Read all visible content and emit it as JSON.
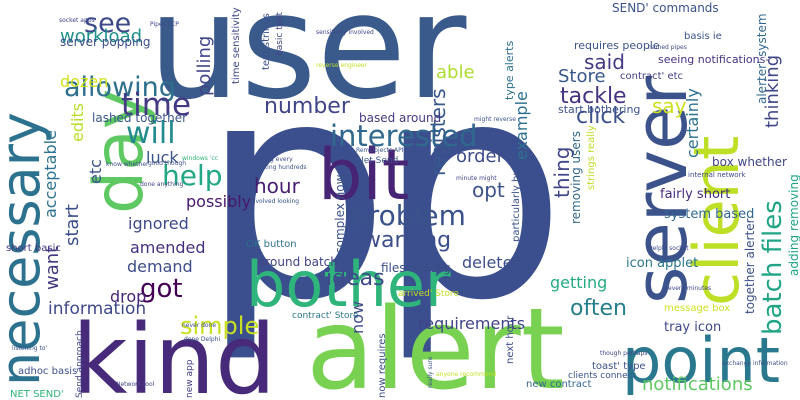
{
  "word_cloud": {
    "words": [
      {
        "id": "user",
        "text": "user",
        "color": "#3b5a8c"
      },
      {
        "id": "pp",
        "text": "pp",
        "color": "#3b4f8e"
      },
      {
        "id": "alert",
        "text": "alert",
        "color": "#79d152"
      },
      {
        "id": "kind",
        "text": "kind",
        "color": "#472a7a"
      },
      {
        "id": "bother",
        "text": "bother",
        "color": "#2fb47c"
      },
      {
        "id": "server",
        "text": "server",
        "color": "#3b528b"
      },
      {
        "id": "client",
        "text": "client",
        "color": "#bddf26"
      },
      {
        "id": "point",
        "text": "point",
        "color": "#2a788e"
      },
      {
        "id": "bit",
        "text": "bit",
        "color": "#482475"
      },
      {
        "id": "day",
        "text": "day",
        "color": "#5ec962"
      },
      {
        "id": "necessary",
        "text": "necessary",
        "color": "#2c728e"
      },
      {
        "id": "interested",
        "text": "interested",
        "color": "#31688e"
      },
      {
        "id": "problem",
        "text": "problem",
        "color": "#3a528b"
      },
      {
        "id": "batch-files",
        "text": "batch files",
        "color": "#20a486"
      },
      {
        "id": "allowing",
        "text": "allowing",
        "color": "#2e6f8e"
      },
      {
        "id": "time",
        "text": "time",
        "color": "#443983"
      },
      {
        "id": "will",
        "text": "will",
        "color": "#238a8d"
      },
      {
        "id": "help",
        "text": "help",
        "color": "#22a884"
      },
      {
        "id": "see",
        "text": "see",
        "color": "#3e4989"
      },
      {
        "id": "simple",
        "text": "simple",
        "color": "#c8e020"
      },
      {
        "id": "warning",
        "text": "warning",
        "color": "#3c4f8a"
      },
      {
        "id": "requirements",
        "text": "requirements",
        "color": "#414487"
      },
      {
        "id": "notifications",
        "text": "notifications",
        "color": "#5ec962"
      },
      {
        "id": "information",
        "text": "information",
        "color": "#3f4889"
      },
      {
        "id": "got",
        "text": "got",
        "color": "#440154"
      },
      {
        "id": "click",
        "text": "click",
        "color": "#3b518b"
      },
      {
        "id": "tackle",
        "text": "tackle",
        "color": "#46327e"
      },
      {
        "id": "hour",
        "text": "hour",
        "color": "#481f70"
      },
      {
        "id": "number",
        "text": "number",
        "color": "#404588"
      },
      {
        "id": "often",
        "text": "often",
        "color": "#277f8e"
      },
      {
        "id": "ideas",
        "text": "ideas",
        "color": "#3e4a89"
      },
      {
        "id": "drop",
        "text": "drop",
        "color": "#482576"
      },
      {
        "id": "able",
        "text": "able",
        "color": "#addc30"
      },
      {
        "id": "workload",
        "text": "workload",
        "color": "#21918c"
      },
      {
        "id": "dozen",
        "text": "dozen",
        "color": "#d2e21b"
      },
      {
        "id": "say",
        "text": "say",
        "color": "#cde11d"
      },
      {
        "id": "said",
        "text": "said",
        "color": "#453781"
      },
      {
        "id": "Store",
        "text": "Store",
        "color": "#38588c"
      },
      {
        "id": "order",
        "text": "order",
        "color": "#3d4d8a"
      },
      {
        "id": "opt",
        "text": "opt",
        "color": "#3b528b"
      },
      {
        "id": "thing",
        "text": "thing",
        "color": "#404688"
      },
      {
        "id": "getting",
        "text": "getting",
        "color": "#25ac82"
      },
      {
        "id": "deleted",
        "text": "deleted",
        "color": "#3d4e8a"
      },
      {
        "id": "amended",
        "text": "amended",
        "color": "#46307e"
      },
      {
        "id": "demand",
        "text": "demand",
        "color": "#3e4c8a"
      },
      {
        "id": "ignored",
        "text": "ignored",
        "color": "#3e4a89"
      },
      {
        "id": "possibly",
        "text": "possibly",
        "color": "#48186a"
      },
      {
        "id": "start",
        "text": "start",
        "color": "#3c508b"
      },
      {
        "id": "want",
        "text": "want",
        "color": "#453882"
      },
      {
        "id": "acceptable",
        "text": "acceptable",
        "color": "#2c728e"
      },
      {
        "id": "edits",
        "text": "edits",
        "color": "#b8de29"
      },
      {
        "id": "etc",
        "text": "etc",
        "color": "#3a538b"
      },
      {
        "id": "luck",
        "text": "luck",
        "color": "#3a548c"
      },
      {
        "id": "polling",
        "text": "polling",
        "color": "#404688"
      },
      {
        "id": "registers",
        "text": "registers",
        "color": "#38588c"
      },
      {
        "id": "example",
        "text": "example",
        "color": "#2d708e"
      },
      {
        "id": "certainly",
        "text": "certainly",
        "color": "#2c718e"
      },
      {
        "id": "thinking",
        "text": "thinking",
        "color": "#3f4788"
      },
      {
        "id": "lashed-together",
        "text": "lashed together",
        "color": "#3a548c"
      },
      {
        "id": "based-around",
        "text": "based around",
        "color": "#443a83"
      },
      {
        "id": "now",
        "text": "now",
        "color": "#3e4a89"
      },
      {
        "id": "complex-now",
        "text": "complex now",
        "color": "#3b528b"
      },
      {
        "id": "files-adding",
        "text": "files adding",
        "color": "#3c4f8a"
      },
      {
        "id": "around-batch",
        "text": "around batch",
        "color": "#414487"
      },
      {
        "id": "tray-icon",
        "text": "tray icon",
        "color": "#3e4989"
      },
      {
        "id": "icon-applet",
        "text": "icon applet",
        "color": "#2a768e"
      },
      {
        "id": "system-based",
        "text": "system based",
        "color": "#31678e"
      },
      {
        "id": "fairly-short",
        "text": "fairly short",
        "color": "#472d7b"
      },
      {
        "id": "box-whether",
        "text": "box whether",
        "color": "#414487"
      },
      {
        "id": "send-commands",
        "text": "SEND' commands",
        "color": "#3b518b"
      },
      {
        "id": "alerter-system",
        "text": "alerter' system",
        "color": "#31688e"
      },
      {
        "id": "together-alerter",
        "text": "together alerter",
        "color": "#3c4f8a"
      },
      {
        "id": "adding-removing",
        "text": "adding removing",
        "color": "#20a486"
      },
      {
        "id": "requires-people",
        "text": "requires people",
        "color": "#3a548c"
      },
      {
        "id": "seeing-notifications",
        "text": "seeing notifications-",
        "color": "#46337f"
      },
      {
        "id": "start-bothering",
        "text": "start bothering",
        "color": "#3b528b"
      },
      {
        "id": "contract-etc",
        "text": "contract' etc",
        "color": "#433e85"
      },
      {
        "id": "server-popping",
        "text": "server popping",
        "color": "#3c4f8a"
      },
      {
        "id": "time-sensitivity",
        "text": "time sensitivity",
        "color": "#3f4889"
      },
      {
        "id": "text-strings",
        "text": "text strings",
        "color": "#3b528b"
      },
      {
        "id": "basic-text",
        "text": "basic text",
        "color": "#404588"
      },
      {
        "id": "type-alerts",
        "text": "type alerts",
        "color": "#2e6e8e"
      },
      {
        "id": "removing-users",
        "text": "removing users",
        "color": "#31688e"
      },
      {
        "id": "strings-really",
        "text": "strings really",
        "color": "#bddf26"
      },
      {
        "id": "particularly-busy",
        "text": "particularly busy",
        "color": "#3b518b"
      },
      {
        "id": "short-basic",
        "text": "short basic",
        "color": "#443983"
      },
      {
        "id": "ok-button",
        "text": "OK button",
        "color": "#2c728e"
      },
      {
        "id": "net-send-mid",
        "text": "Net Send",
        "color": "#3b528b"
      },
      {
        "id": "adhoc-basis",
        "text": "adhoc basis",
        "color": "#3c508b"
      },
      {
        "id": "net-send-q",
        "text": "NET SEND'",
        "color": "#2fb47c"
      },
      {
        "id": "send-approach",
        "text": "Send approach",
        "color": "#404688"
      },
      {
        "id": "new-app",
        "text": "new app",
        "color": "#433e85"
      },
      {
        "id": "now-requires",
        "text": "now requires",
        "color": "#3e4c8a"
      },
      {
        "id": "new-contract",
        "text": "new contract",
        "color": "#31688e"
      },
      {
        "id": "next-hour",
        "text": "next hour",
        "color": "#3e4c8a"
      },
      {
        "id": "clients-connect",
        "text": "clients connect",
        "color": "#3a538b"
      },
      {
        "id": "toast-type",
        "text": "toast' type",
        "color": "#3b518b"
      },
      {
        "id": "contract-store",
        "text": "contract' Store",
        "color": "#2a788e"
      },
      {
        "id": "arrived-store",
        "text": "arrived' Store",
        "color": "#c2df23"
      },
      {
        "id": "message-box",
        "text": "message box",
        "color": "#cde11d"
      },
      {
        "id": "basis-ie",
        "text": "basis ie",
        "color": "#3b528b"
      },
      {
        "id": "internal-network",
        "text": "internal network",
        "color": "#3e4989"
      },
      {
        "id": "sensitivity-involved",
        "text": "sensitivity involved",
        "color": "#404588"
      },
      {
        "id": "looking-every",
        "text": "looking every",
        "color": "#3e4989"
      },
      {
        "id": "talking-hundreds",
        "text": "talking hundreds",
        "color": "#3b528b"
      },
      {
        "id": "involved-looking",
        "text": "involved looking",
        "color": "#3b518b"
      },
      {
        "id": "done-anything",
        "text": "done anything",
        "color": "#404688"
      },
      {
        "id": "good-though",
        "text": "good though",
        "color": "#3b528b"
      },
      {
        "id": "know-whether",
        "text": "know whether",
        "color": "#3e4c8a"
      },
      {
        "id": "remobjects-api",
        "text": "RemObjects API",
        "color": "#3b528b"
      },
      {
        "id": "delphi-socket",
        "text": "Delphi socket",
        "color": "#3e4989"
      },
      {
        "id": "every-minutes",
        "text": "every minutes",
        "color": "#404588"
      },
      {
        "id": "exchange-information",
        "text": "exchange information",
        "color": "#3b528b"
      },
      {
        "id": "though-perhaps",
        "text": "though perhaps",
        "color": "#404688"
      },
      {
        "id": "done-delphi",
        "text": "done Delphi",
        "color": "#3b518b"
      },
      {
        "id": "never-done",
        "text": "never done",
        "color": "#3e4c8a"
      },
      {
        "id": "listening-to",
        "text": "listening to'",
        "color": "#3b528b"
      },
      {
        "id": "anyone-recommend",
        "text": "anyone recommend",
        "color": "#c2df23"
      },
      {
        "id": "socket-apps",
        "text": "socket apps",
        "color": "#404588"
      },
      {
        "id": "pipes-tcp",
        "text": "Pipes TCP",
        "color": "#3e4989"
      },
      {
        "id": "reverse-engineer",
        "text": "reverse engineer",
        "color": "#bddf26"
      },
      {
        "id": "might-reverse",
        "text": "might reverse",
        "color": "#3b528b"
      },
      {
        "id": "minute-might",
        "text": "minute might",
        "color": "#404688"
      },
      {
        "id": "windows-cc",
        "text": "windows 'cc",
        "color": "#2fb47c"
      },
      {
        "id": "named-pipes",
        "text": "named pipes",
        "color": "#3e4989"
      },
      {
        "id": "really-sure",
        "text": "really sure",
        "color": "#3b528b"
      },
      {
        "id": "remote-tool",
        "text": "Network tool",
        "color": "#404588"
      }
    ]
  }
}
